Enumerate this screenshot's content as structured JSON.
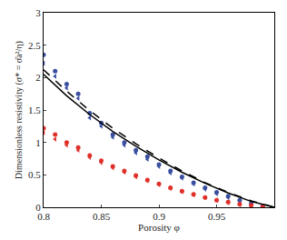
{
  "chart_data": {
    "type": "scatter",
    "x_label": "Porosity φ",
    "y_label": "Dimensionless resistivity (σ* = σ̄a²/η)",
    "xlim": [
      0.8,
      1.0
    ],
    "xticks": [
      0.8,
      0.85,
      0.9,
      0.95
    ],
    "ylim": [
      0,
      3
    ],
    "yticks": [
      0,
      0.5,
      1,
      1.5,
      2,
      2.5,
      3
    ],
    "grid": false,
    "series": [
      {
        "type": "scatter",
        "color": "#3a4fa0",
        "marker": "circle",
        "x": [
          0.8,
          0.81,
          0.82,
          0.83,
          0.84,
          0.85,
          0.86,
          0.87,
          0.88,
          0.89,
          0.9,
          0.91,
          0.92,
          0.93,
          0.94,
          0.95,
          0.96,
          0.97,
          0.98,
          0.99
        ],
        "values": [
          2.35,
          2.1,
          1.9,
          1.75,
          1.45,
          1.3,
          1.12,
          1.0,
          0.88,
          0.78,
          0.66,
          0.56,
          0.47,
          0.38,
          0.3,
          0.23,
          0.17,
          0.11,
          0.06,
          0.02
        ]
      },
      {
        "type": "scatter",
        "color": "#3a4fa0",
        "marker": "triangle-left",
        "x": [
          0.8,
          0.81,
          0.82,
          0.83,
          0.84,
          0.85,
          0.86,
          0.87,
          0.88,
          0.89,
          0.9,
          0.91,
          0.92,
          0.93,
          0.94,
          0.95,
          0.96,
          0.97,
          0.98,
          0.99
        ],
        "values": [
          2.22,
          2.02,
          1.84,
          1.68,
          1.38,
          1.25,
          1.08,
          0.96,
          0.84,
          0.74,
          0.63,
          0.53,
          0.45,
          0.36,
          0.28,
          0.21,
          0.15,
          0.1,
          0.05,
          0.02
        ]
      },
      {
        "type": "scatter",
        "color": "#e0302a",
        "marker": "circle",
        "x": [
          0.8,
          0.81,
          0.82,
          0.83,
          0.84,
          0.85,
          0.86,
          0.87,
          0.88,
          0.89,
          0.9,
          0.91,
          0.92,
          0.93,
          0.94,
          0.95,
          0.96,
          0.97,
          0.98,
          0.99
        ],
        "values": [
          1.22,
          1.12,
          1.0,
          0.92,
          0.8,
          0.72,
          0.63,
          0.56,
          0.49,
          0.42,
          0.36,
          0.3,
          0.25,
          0.2,
          0.15,
          0.11,
          0.08,
          0.05,
          0.03,
          0.01
        ]
      },
      {
        "type": "scatter",
        "color": "#e0302a",
        "marker": "triangle-left",
        "x": [
          0.8,
          0.81,
          0.82,
          0.83,
          0.84,
          0.85,
          0.86,
          0.87,
          0.88,
          0.89,
          0.9,
          0.91,
          0.92,
          0.93,
          0.94,
          0.95,
          0.96,
          0.97,
          0.98,
          0.99
        ],
        "values": [
          1.15,
          1.05,
          0.96,
          0.88,
          0.77,
          0.69,
          0.61,
          0.54,
          0.47,
          0.41,
          0.35,
          0.29,
          0.24,
          0.19,
          0.15,
          0.11,
          0.07,
          0.04,
          0.02,
          0.01
        ]
      },
      {
        "type": "line",
        "color": "#000000",
        "line_style": "solid",
        "x": [
          0.8,
          0.82,
          0.84,
          0.86,
          0.88,
          0.9,
          0.92,
          0.94,
          0.96,
          0.98,
          1.0
        ],
        "values": [
          2.05,
          1.72,
          1.43,
          1.17,
          0.94,
          0.73,
          0.54,
          0.37,
          0.22,
          0.09,
          0
        ]
      },
      {
        "type": "line",
        "color": "#000000",
        "line_style": "dash",
        "x": [
          0.8,
          0.82,
          0.84,
          0.86,
          0.88,
          0.9,
          0.92,
          0.94,
          0.96,
          0.98,
          1.0
        ],
        "values": [
          2.12,
          1.79,
          1.49,
          1.22,
          0.98,
          0.76,
          0.56,
          0.38,
          0.23,
          0.1,
          0
        ]
      }
    ]
  }
}
